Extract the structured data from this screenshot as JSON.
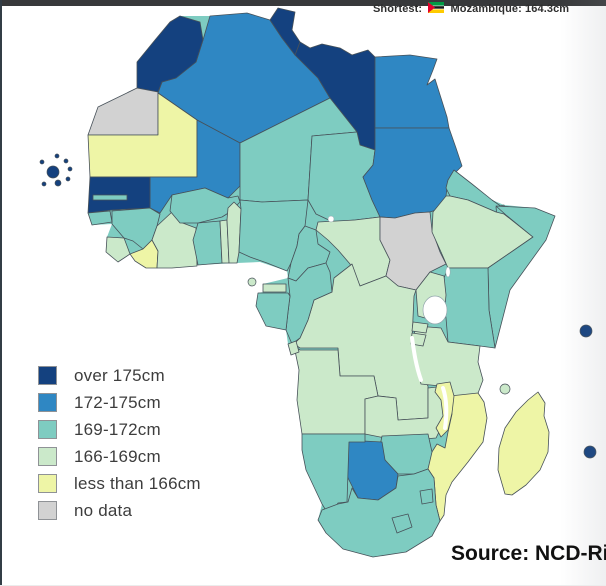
{
  "header": {
    "prefix": "Shortest:",
    "flag": "mozambique-flag",
    "country": "Mozambique:",
    "value": "164.3cm"
  },
  "source": {
    "text": "Source: NCD-Ri"
  },
  "legend": {
    "items": [
      {
        "key": "over175",
        "label": "over 175cm",
        "color": "#14417f"
      },
      {
        "key": "h172_175",
        "label": "172-175cm",
        "color": "#2f87c3"
      },
      {
        "key": "h169_172",
        "label": "169-172cm",
        "color": "#7eccc1"
      },
      {
        "key": "h166_169",
        "label": "166-169cm",
        "color": "#cbe9ca"
      },
      {
        "key": "under166",
        "label": "less than 166cm",
        "color": "#eef5a6"
      },
      {
        "key": "nodata",
        "label": "no data",
        "color": "#d2d2d2"
      }
    ]
  },
  "chart_data": {
    "type": "heatmap",
    "title": "Average male height in Africa by country (choropleth)",
    "legend_position": "bottom-left",
    "annotations": [
      "Shortest: Mozambique: 164.3cm",
      "Source: NCD-Ri"
    ],
    "categories": [
      "over 175cm",
      "172-175cm",
      "169-172cm",
      "166-169cm",
      "less than 166cm",
      "no data"
    ],
    "values": {
      "over 175cm": [
        "Morocco",
        "Tunisia",
        "Libya",
        "Senegal",
        "Cape Verde",
        "Seychelles",
        "Mauritius"
      ],
      "172-175cm": [
        "Algeria",
        "Egypt",
        "Sudan",
        "Mali",
        "Botswana"
      ],
      "169-172cm": [
        "Niger",
        "Chad",
        "Eritrea",
        "Djibouti",
        "Somalia",
        "Kenya",
        "Burkina Faso",
        "Ghana",
        "Nigeria",
        "Cameroon",
        "Guinea",
        "Guinea-Bissau",
        "Gambia",
        "Congo",
        "Gabon",
        "Namibia",
        "Zimbabwe",
        "South Africa",
        "Lesotho",
        "Eswatini"
      ],
      "166-169cm": [
        "Ethiopia",
        "Uganda",
        "Rwanda",
        "Burundi",
        "Tanzania",
        "DR Congo",
        "Central African Republic",
        "Angola",
        "Zambia",
        "Ivory Coast",
        "Togo",
        "Benin",
        "Sierra Leone",
        "Equatorial Guinea",
        "Comoros"
      ],
      "less than 166cm": [
        "Mauritania",
        "Liberia",
        "Malawi",
        "Mozambique",
        "Madagascar"
      ],
      "no data": [
        "Western Sahara",
        "South Sudan"
      ]
    }
  },
  "map": {
    "countries": [
      {
        "id": "algeria",
        "name": "Algeria",
        "category": "h172_175"
      },
      {
        "id": "libya",
        "name": "Libya",
        "category": "over175"
      },
      {
        "id": "tunisia",
        "name": "Tunisia",
        "category": "over175"
      },
      {
        "id": "morocco",
        "name": "Morocco",
        "category": "over175"
      },
      {
        "id": "wsahara",
        "name": "Western Sahara",
        "category": "nodata"
      },
      {
        "id": "mauritania",
        "name": "Mauritania",
        "category": "under166"
      },
      {
        "id": "mali",
        "name": "Mali",
        "category": "h172_175"
      },
      {
        "id": "niger",
        "name": "Niger",
        "category": "h169_172"
      },
      {
        "id": "chad",
        "name": "Chad",
        "category": "h169_172"
      },
      {
        "id": "egypt",
        "name": "Egypt",
        "category": "h172_175"
      },
      {
        "id": "sudan",
        "name": "Sudan",
        "category": "h172_175"
      },
      {
        "id": "senegal",
        "name": "Senegal",
        "category": "over175"
      },
      {
        "id": "guinea",
        "name": "Guinea",
        "category": "h169_172"
      },
      {
        "id": "gbissau",
        "name": "Guinea-Bissau",
        "category": "h169_172"
      },
      {
        "id": "sleone",
        "name": "Sierra Leone",
        "category": "h166_169"
      },
      {
        "id": "liberia",
        "name": "Liberia",
        "category": "under166"
      },
      {
        "id": "ivorycoast",
        "name": "Ivory Coast",
        "category": "h166_169"
      },
      {
        "id": "burkina",
        "name": "Burkina Faso",
        "category": "h169_172"
      },
      {
        "id": "ghana",
        "name": "Ghana",
        "category": "h169_172"
      },
      {
        "id": "togo",
        "name": "Togo",
        "category": "h166_169"
      },
      {
        "id": "benin",
        "name": "Benin",
        "category": "h166_169"
      },
      {
        "id": "nigeria",
        "name": "Nigeria",
        "category": "h169_172"
      },
      {
        "id": "cameroon",
        "name": "Cameroon",
        "category": "h169_172"
      },
      {
        "id": "car",
        "name": "Central African Republic",
        "category": "h166_169"
      },
      {
        "id": "ssudan",
        "name": "South Sudan",
        "category": "nodata"
      },
      {
        "id": "eritrea",
        "name": "Eritrea",
        "category": "h169_172"
      },
      {
        "id": "djibouti",
        "name": "Djibouti",
        "category": "h169_172"
      },
      {
        "id": "ethiopia",
        "name": "Ethiopia",
        "category": "h166_169"
      },
      {
        "id": "somalia",
        "name": "Somalia",
        "category": "h169_172"
      },
      {
        "id": "kenya",
        "name": "Kenya",
        "category": "h169_172"
      },
      {
        "id": "uganda",
        "name": "Uganda",
        "category": "h166_169"
      },
      {
        "id": "drc",
        "name": "DR Congo",
        "category": "h166_169"
      },
      {
        "id": "congo",
        "name": "Congo",
        "category": "h169_172"
      },
      {
        "id": "gabon",
        "name": "Gabon",
        "category": "h169_172"
      },
      {
        "id": "eqguinea",
        "name": "Equatorial Guinea",
        "category": "h166_169"
      },
      {
        "id": "angola",
        "name": "Angola",
        "category": "h166_169"
      },
      {
        "id": "cabinda",
        "name": "Cabinda",
        "category": "h166_169"
      },
      {
        "id": "zambia",
        "name": "Zambia",
        "category": "h166_169"
      },
      {
        "id": "tanzania",
        "name": "Tanzania",
        "category": "h166_169"
      },
      {
        "id": "rwanda",
        "name": "Rwanda",
        "category": "h166_169"
      },
      {
        "id": "burundi",
        "name": "Burundi",
        "category": "h166_169"
      },
      {
        "id": "mozambique",
        "name": "Mozambique",
        "category": "under166"
      },
      {
        "id": "malawi",
        "name": "Malawi",
        "category": "under166"
      },
      {
        "id": "zimbabwe",
        "name": "Zimbabwe",
        "category": "h169_172"
      },
      {
        "id": "botswana",
        "name": "Botswana",
        "category": "h172_175"
      },
      {
        "id": "namibia",
        "name": "Namibia",
        "category": "h169_172"
      },
      {
        "id": "southafrica",
        "name": "South Africa",
        "category": "h169_172"
      },
      {
        "id": "lesotho",
        "name": "Lesotho",
        "category": "h169_172"
      },
      {
        "id": "eswatini",
        "name": "Eswatini",
        "category": "h169_172"
      },
      {
        "id": "madagascar",
        "name": "Madagascar",
        "category": "under166"
      },
      {
        "id": "gambia",
        "name": "Gambia",
        "category": "h169_172"
      }
    ],
    "islands": [
      {
        "id": "cape-verde",
        "name": "Cape Verde",
        "category": "over175"
      },
      {
        "id": "bioko",
        "name": "Bioko",
        "category": "h166_169"
      },
      {
        "id": "comoros",
        "name": "Comoros",
        "category": "h166_169"
      },
      {
        "id": "seychelles",
        "name": "Seychelles",
        "category": "over175"
      },
      {
        "id": "mauritius",
        "name": "Mauritius",
        "category": "over175"
      }
    ]
  }
}
